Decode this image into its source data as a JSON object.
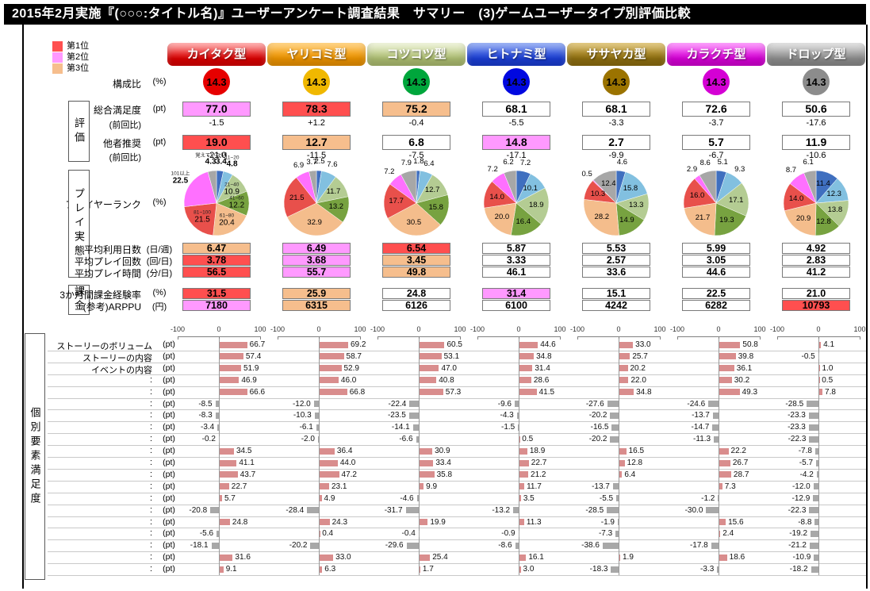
{
  "title": "2015年2月実施『(○○○:タイトル名)』ユーザーアンケート調査結果　サマリー　(3)ゲームユーザータイプ別評価比較",
  "legend": [
    {
      "label": "第1位",
      "color": "#ff5050"
    },
    {
      "label": "第2位",
      "color": "#ff99ff"
    },
    {
      "label": "第3位",
      "color": "#f6be8d"
    }
  ],
  "user_types": [
    {
      "name": "カイタク型",
      "composition": "14.3",
      "pill": [
        "#ff9a9a",
        "#dc0000"
      ],
      "circle_color": "#e60000"
    },
    {
      "name": "ヤリコミ型",
      "composition": "14.3",
      "pill": [
        "#ffc55e",
        "#ef9500"
      ],
      "circle_color": "#f0b800"
    },
    {
      "name": "コツコツ型",
      "composition": "14.3",
      "pill": [
        "#e9efcf",
        "#b0c173"
      ],
      "circle_color": "#00a63c"
    },
    {
      "name": "ヒトナミ型",
      "composition": "14.3",
      "pill": [
        "#7d9bf0",
        "#1b3ed6"
      ],
      "circle_color": "#0008e0"
    },
    {
      "name": "ササヤカ型",
      "composition": "14.3",
      "pill": [
        "#d9b85a",
        "#8f6f10"
      ],
      "circle_color": "#9b7300"
    },
    {
      "name": "カラクチ型",
      "composition": "14.3",
      "pill": [
        "#fb80fb",
        "#d800d8"
      ],
      "circle_color": "#d400d4"
    },
    {
      "name": "ドロップ型",
      "composition": "14.3",
      "pill": [
        "#d8d8d8",
        "#8e8e8e"
      ],
      "circle_color": "#8c8c8c"
    }
  ],
  "composition_row": {
    "label": "構成比",
    "unit": "(%)"
  },
  "side_sections": [
    "評価",
    "プレイ実態",
    "課金",
    "個別要素満足度"
  ],
  "fill_colors": {
    "red": "#ff4f4f",
    "pink": "#ff99ff",
    "tan": "#f6be8d",
    "white": "#ffffff"
  },
  "metrics": [
    {
      "label": "総合満足度",
      "unit": "(pt)",
      "values": [
        "77.0",
        "78.3",
        "75.2",
        "68.1",
        "68.1",
        "72.6",
        "50.6"
      ],
      "fills": [
        "pink",
        "red",
        "tan",
        "white",
        "white",
        "white",
        "white"
      ],
      "sub_label": "(前回比)",
      "sub_values": [
        "-1.5",
        "+1.2",
        "-0.4",
        "-5.5",
        "-3.3",
        "-3.7",
        "-17.6"
      ]
    },
    {
      "label": "他者推奨",
      "unit": "(pt)",
      "values": [
        "19.0",
        "12.7",
        "6.8",
        "14.8",
        "2.7",
        "5.7",
        "11.9"
      ],
      "fills": [
        "red",
        "tan",
        "white",
        "pink",
        "white",
        "white",
        "white"
      ],
      "sub_label": "(前回比)",
      "sub_values": [
        "-21.0",
        "-11.5",
        "-7.5",
        "-17.1",
        "-9.9",
        "-6.7",
        "-10.6"
      ]
    },
    {
      "label": "平均利用日数",
      "unit": "(日/週)",
      "values": [
        "6.47",
        "6.49",
        "6.54",
        "5.87",
        "5.53",
        "5.99",
        "4.92"
      ],
      "fills": [
        "tan",
        "pink",
        "red",
        "white",
        "white",
        "white",
        "white"
      ]
    },
    {
      "label": "平均プレイ回数",
      "unit": "(回/日)",
      "values": [
        "3.78",
        "3.68",
        "3.45",
        "3.33",
        "2.57",
        "3.05",
        "2.83"
      ],
      "fills": [
        "red",
        "pink",
        "tan",
        "white",
        "white",
        "white",
        "white"
      ]
    },
    {
      "label": "平均プレイ時間",
      "unit": "(分/日)",
      "values": [
        "56.5",
        "55.7",
        "49.8",
        "46.1",
        "33.6",
        "44.6",
        "41.2"
      ],
      "fills": [
        "red",
        "pink",
        "tan",
        "white",
        "white",
        "white",
        "white"
      ]
    },
    {
      "label": "3か月間課金経験率",
      "unit": "(%)",
      "values": [
        "31.5",
        "25.9",
        "24.8",
        "31.4",
        "15.1",
        "22.5",
        "21.0"
      ],
      "fills": [
        "red",
        "tan",
        "white",
        "pink",
        "white",
        "white",
        "white"
      ]
    },
    {
      "label": "(参考)ARPPU",
      "unit": "(円)",
      "values": [
        "7180",
        "6315",
        "6126",
        "6100",
        "4242",
        "6282",
        "10793"
      ],
      "fills": [
        "pink",
        "tan",
        "white",
        "white",
        "white",
        "white",
        "red"
      ]
    }
  ],
  "player_rank_row": {
    "label": "プレイヤーランク",
    "unit": "(%)"
  },
  "chart_data": [
    {
      "type": "pie",
      "title": "プレイヤーランク",
      "unit": "%",
      "categories": [
        "1~10",
        "11~20",
        "21~40",
        "41~60",
        "61~80",
        "81~100",
        "101以上",
        "覚えていない"
      ],
      "colors": [
        "#3f6fbf",
        "#82c0e0",
        "#b4cc93",
        "#77a240",
        "#f4bd8c",
        "#e8504b",
        "#ff70ff",
        "#a7a7a7"
      ],
      "category_labels_on_first_pie_only": true,
      "series": [
        {
          "name": "カイタク型",
          "values": [
            3.4,
            4.8,
            10.9,
            12.2,
            20.4,
            21.5,
            22.5,
            4.3
          ]
        },
        {
          "name": "ヤリコミ型",
          "values": [
            2.5,
            7.6,
            11.7,
            13.2,
            32.9,
            21.5,
            6.9,
            3.7
          ]
        },
        {
          "name": "コツコツ型",
          "values": [
            1.8,
            6.4,
            12.7,
            15.8,
            30.5,
            17.7,
            7.2,
            7.9
          ]
        },
        {
          "name": "ヒトナミ型",
          "values": [
            7.2,
            10.1,
            18.9,
            16.4,
            20.0,
            14.0,
            7.2,
            6.2
          ]
        },
        {
          "name": "ササヤカ型",
          "values": [
            4.6,
            15.8,
            13.3,
            14.9,
            28.2,
            10.3,
            0.5,
            12.4
          ]
        },
        {
          "name": "カラクチ型",
          "values": [
            5.1,
            9.3,
            17.1,
            19.3,
            21.7,
            16.0,
            2.9,
            8.6
          ]
        },
        {
          "name": "ドロップ型",
          "values": [
            11.4,
            12.3,
            13.8,
            12.8,
            20.9,
            14.0,
            8.7,
            6.1
          ]
        }
      ]
    },
    {
      "type": "bar",
      "orientation": "horizontal",
      "title": "個別要素満足度",
      "row_unit": "(pt)",
      "xlim": [
        -100,
        100
      ],
      "x_ticks": [
        "-100",
        "0",
        "100"
      ],
      "positive_color": "#d98d8d",
      "negative_color": "#a8a8a8",
      "categories": [
        "ストーリーのボリューム",
        "ストーリーの内容",
        "イベントの内容",
        ":",
        ":",
        ":",
        ":",
        ":",
        ":",
        ":",
        ":",
        ":",
        ":",
        ":",
        ":",
        ":",
        ":",
        ":",
        ":",
        ":"
      ],
      "series": [
        {
          "name": "カイタク型",
          "values": [
            66.7,
            57.4,
            51.9,
            46.9,
            66.6,
            -8.5,
            -8.3,
            -3.4,
            -0.2,
            34.5,
            41.1,
            43.7,
            22.7,
            5.7,
            -20.8,
            24.8,
            -5.6,
            -18.1,
            31.6,
            9.1
          ]
        },
        {
          "name": "ヤリコミ型",
          "values": [
            69.2,
            58.7,
            52.9,
            46.0,
            66.8,
            -12.0,
            -10.3,
            -6.1,
            -2.0,
            36.4,
            44.0,
            47.2,
            23.1,
            4.9,
            -28.4,
            24.3,
            0.4,
            -20.2,
            33.0,
            6.3
          ]
        },
        {
          "name": "コツコツ型",
          "values": [
            60.5,
            53.1,
            47.0,
            40.8,
            57.3,
            -22.4,
            -23.5,
            -14.1,
            -6.6,
            30.9,
            33.4,
            35.8,
            9.9,
            -4.6,
            -31.7,
            19.9,
            -0.4,
            -29.6,
            25.4,
            1.7
          ]
        },
        {
          "name": "ヒトナミ型",
          "values": [
            44.6,
            34.8,
            31.4,
            28.6,
            41.5,
            -9.6,
            -4.3,
            -1.5,
            0.5,
            18.9,
            22.7,
            21.2,
            11.7,
            3.5,
            -13.2,
            11.3,
            -0.9,
            -8.6,
            16.1,
            3.0
          ]
        },
        {
          "name": "ササヤカ型",
          "values": [
            33.0,
            25.7,
            20.2,
            22.0,
            34.8,
            -27.6,
            -20.2,
            -16.5,
            -20.2,
            16.5,
            12.8,
            6.4,
            -13.7,
            -5.5,
            -28.5,
            -1.9,
            -7.3,
            -38.6,
            1.9,
            -18.3
          ]
        },
        {
          "name": "カラクチ型",
          "values": [
            50.8,
            39.8,
            36.1,
            30.2,
            49.3,
            -24.6,
            -13.7,
            -14.7,
            -11.3,
            22.2,
            26.7,
            28.7,
            7.3,
            -1.2,
            -30.0,
            15.6,
            2.4,
            -17.8,
            18.6,
            -3.3
          ]
        },
        {
          "name": "ドロップ型",
          "values": [
            4.1,
            -0.5,
            1.0,
            0.5,
            7.8,
            -28.5,
            -23.3,
            -23.3,
            -22.3,
            -7.8,
            -5.7,
            -4.2,
            -12.0,
            -12.9,
            -22.3,
            -8.8,
            -19.2,
            -21.2,
            -10.9,
            -18.2
          ]
        }
      ]
    }
  ]
}
